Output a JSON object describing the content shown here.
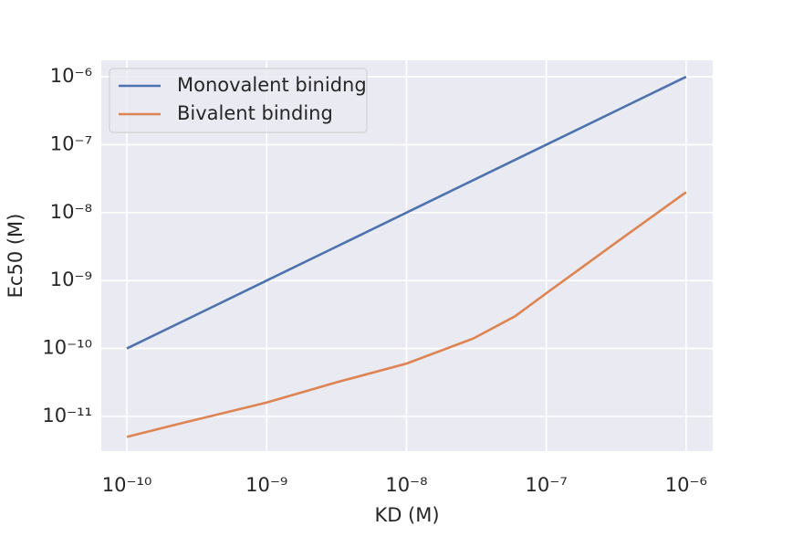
{
  "chart_data": {
    "type": "line",
    "x_label": "KD (M)",
    "y_label": "Ec50 (M)",
    "x": [
      1e-10,
      2.5e-10,
      1e-09,
      3.2e-09,
      1e-08,
      3e-08,
      6e-08,
      1e-07,
      3.2e-07,
      1e-06
    ],
    "series": [
      {
        "name": "Monovalent binidng",
        "color": "#4c72b0",
        "values": [
          1e-10,
          2.5e-10,
          1e-09,
          3.2e-09,
          1e-08,
          3e-08,
          6e-08,
          1e-07,
          3.2e-07,
          1e-06
        ]
      },
      {
        "name": "Bivalent binding",
        "color": "#dd8452",
        "values": [
          5e-12,
          8e-12,
          1.6e-11,
          3.2e-11,
          6e-11,
          1.4e-10,
          3e-10,
          6.5e-10,
          3.7e-09,
          2e-08
        ]
      }
    ],
    "xscale": "log",
    "yscale": "log",
    "xlim": [
      6.56e-11,
      1.55e-06
    ],
    "ylim": [
      3.08e-12,
      1.75e-06
    ],
    "xticks": [
      {
        "value": 1e-10,
        "label": "10⁻¹⁰"
      },
      {
        "value": 1e-09,
        "label": "10⁻⁹"
      },
      {
        "value": 1e-08,
        "label": "10⁻⁸"
      },
      {
        "value": 1e-07,
        "label": "10⁻⁷"
      },
      {
        "value": 1e-06,
        "label": "10⁻⁶"
      }
    ],
    "yticks": [
      {
        "value": 1e-11,
        "label": "10⁻¹¹"
      },
      {
        "value": 1e-10,
        "label": "10⁻¹⁰"
      },
      {
        "value": 1e-09,
        "label": "10⁻⁹"
      },
      {
        "value": 1e-08,
        "label": "10⁻⁸"
      },
      {
        "value": 1e-07,
        "label": "10⁻⁷"
      },
      {
        "value": 1e-06,
        "label": "10⁻⁶"
      }
    ],
    "grid": true,
    "legend": "upper left"
  }
}
